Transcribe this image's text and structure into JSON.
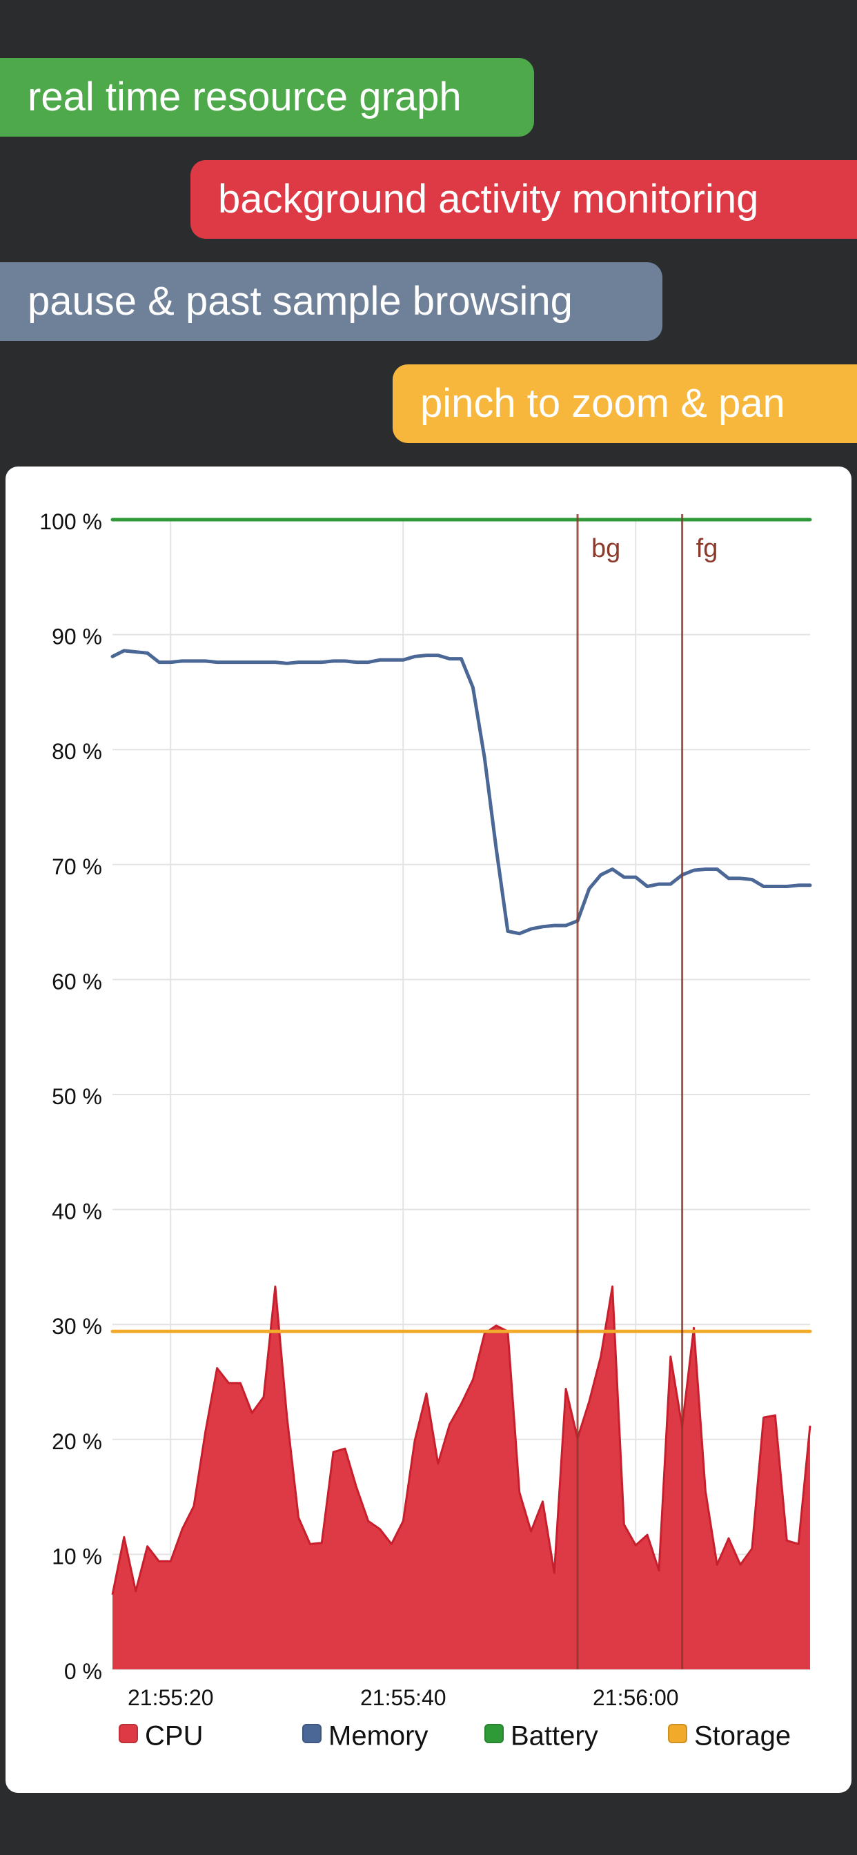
{
  "banners": [
    {
      "label": "real time resource graph",
      "color": "#4ea94b"
    },
    {
      "label": "background activity monitoring",
      "color": "#de3a45"
    },
    {
      "label": "pause & past sample browsing",
      "color": "#6f8199"
    },
    {
      "label": "pinch to zoom & pan",
      "color": "#f6b73c"
    }
  ],
  "chart_data": {
    "type": "line",
    "title": "",
    "xlabel": "",
    "ylabel": "",
    "ylim": [
      0,
      100
    ],
    "y_ticks": [
      "0 %",
      "10 %",
      "20 %",
      "30 %",
      "40 %",
      "50 %",
      "60 %",
      "70 %",
      "80 %",
      "90 %",
      "100 %"
    ],
    "x_range": [
      "21:55:15",
      "21:56:15"
    ],
    "x_ticks": [
      "21:55:20",
      "21:55:40",
      "21:56:00"
    ],
    "x_tick_seconds": [
      5,
      25,
      45
    ],
    "grid": true,
    "legend_position": "bottom",
    "markers": [
      {
        "label": "bg",
        "t": 40,
        "color": "#8b3a2b"
      },
      {
        "label": "fg",
        "t": 49,
        "color": "#8b3a2b"
      }
    ],
    "series": [
      {
        "name": "CPU",
        "color": "#de3a45",
        "style": "area",
        "t": [
          0,
          1,
          2,
          3,
          4,
          5,
          6,
          7,
          8,
          9,
          10,
          11,
          12,
          13,
          14,
          15,
          16,
          17,
          18,
          19,
          20,
          21,
          22,
          23,
          24,
          25,
          26,
          27,
          28,
          29,
          30,
          31,
          32,
          33,
          34,
          35,
          36,
          37,
          38,
          39,
          40,
          41,
          42,
          43,
          44,
          45,
          46,
          47,
          48,
          49,
          50,
          51,
          52,
          53,
          54,
          55,
          56,
          57,
          58,
          59,
          60
        ],
        "values": [
          6.5,
          11.5,
          6.8,
          10.7,
          9.4,
          9.4,
          12.2,
          14.2,
          20.7,
          26.2,
          24.9,
          24.9,
          22.3,
          23.7,
          33.3,
          22,
          13.2,
          10.9,
          11,
          18.9,
          19.2,
          15.8,
          12.9,
          12.2,
          10.9,
          12.9,
          19.9,
          24,
          17.9,
          21.3,
          23.1,
          25.2,
          29.2,
          29.9,
          29.4,
          15.4,
          12,
          14.6,
          8.4,
          24.4,
          20.1,
          23.3,
          27.2,
          33.3,
          12.6,
          10.8,
          11.7,
          8.6,
          27.2,
          21.1,
          29.7,
          15.5,
          9.1,
          11.4,
          9.1,
          10.5,
          21.9,
          22.1,
          11.2,
          10.9,
          21.2
        ]
      },
      {
        "name": "Memory",
        "color": "#4a6795",
        "style": "line",
        "t": [
          0,
          1,
          2,
          3,
          4,
          5,
          6,
          7,
          8,
          9,
          10,
          11,
          12,
          13,
          14,
          15,
          16,
          17,
          18,
          19,
          20,
          21,
          22,
          23,
          24,
          25,
          26,
          27,
          28,
          29,
          30,
          31,
          32,
          33,
          34,
          35,
          36,
          37,
          38,
          39,
          40,
          41,
          42,
          43,
          44,
          45,
          46,
          47,
          48,
          49,
          50,
          51,
          52,
          53,
          54,
          55,
          56,
          57,
          58,
          59,
          60
        ],
        "values": [
          88.1,
          88.6,
          88.5,
          88.4,
          87.6,
          87.6,
          87.7,
          87.7,
          87.7,
          87.6,
          87.6,
          87.6,
          87.6,
          87.6,
          87.6,
          87.5,
          87.6,
          87.6,
          87.6,
          87.7,
          87.7,
          87.6,
          87.6,
          87.8,
          87.8,
          87.8,
          88.1,
          88.2,
          88.2,
          87.9,
          87.9,
          85.4,
          79.3,
          71.4,
          64.2,
          64,
          64.4,
          64.6,
          64.7,
          64.7,
          65.1,
          67.9,
          69.1,
          69.6,
          68.9,
          68.9,
          68.1,
          68.3,
          68.3,
          69.1,
          69.5,
          69.6,
          69.6,
          68.8,
          68.8,
          68.7,
          68.1,
          68.1,
          68.1,
          68.2,
          68.2
        ]
      },
      {
        "name": "Battery",
        "color": "#2e9a37",
        "style": "line",
        "t": [
          0,
          60
        ],
        "values": [
          100,
          100
        ]
      },
      {
        "name": "Storage",
        "color": "#f2aa2a",
        "style": "line",
        "t": [
          0,
          60
        ],
        "values": [
          29.4,
          29.4
        ]
      }
    ]
  }
}
